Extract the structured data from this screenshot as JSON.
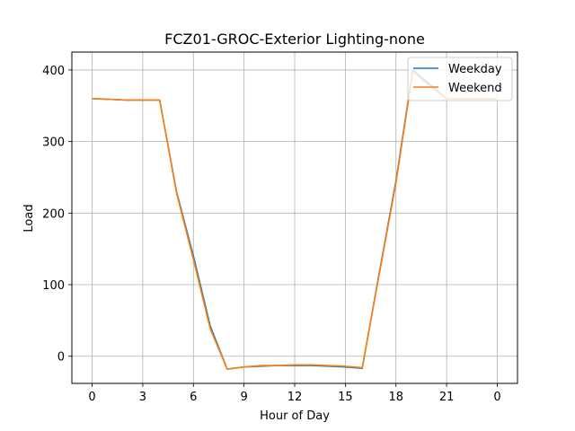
{
  "chart_data": {
    "type": "line",
    "title": "FCZ01-GROC-Exterior Lighting-none",
    "xlabel": "Hour of Day",
    "ylabel": "Load",
    "x": [
      0,
      1,
      2,
      3,
      4,
      5,
      6,
      7,
      8,
      9,
      10,
      11,
      12,
      13,
      14,
      15,
      16,
      17,
      18,
      19,
      20,
      21,
      22,
      23,
      24
    ],
    "x_tick_labels": [
      "0",
      "3",
      "6",
      "9",
      "12",
      "15",
      "18",
      "21",
      "0"
    ],
    "y_ticks": [
      0,
      100,
      200,
      300,
      400
    ],
    "ylim": [
      -38,
      425
    ],
    "xlim": [
      -1.2,
      25.2
    ],
    "grid": true,
    "legend_position": "upper-right",
    "series": [
      {
        "name": "Weekday",
        "color": "#1f77b4",
        "values": [
          360,
          359,
          358,
          358,
          358,
          230,
          140,
          42,
          -18,
          -15,
          -14,
          -13,
          -13,
          -13,
          -14,
          -15,
          -17,
          115,
          245,
          400,
          380,
          360,
          360,
          360,
          360
        ]
      },
      {
        "name": "Weekend",
        "color": "#ff7f0e",
        "values": [
          360,
          359,
          358,
          358,
          358,
          228,
          135,
          38,
          -18,
          -15,
          -13,
          -13,
          -12,
          -12,
          -13,
          -14,
          -16,
          113,
          242,
          398,
          378,
          360,
          360,
          360,
          360
        ]
      }
    ]
  }
}
